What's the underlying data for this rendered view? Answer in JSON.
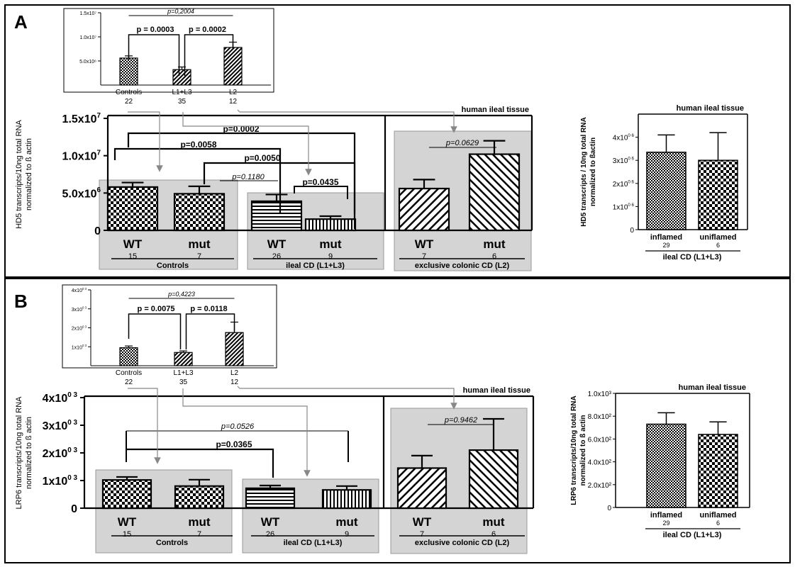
{
  "panel_a": {
    "letter": "A",
    "inset": {
      "yticks": [
        "1.5x10⁷",
        "1.0x10⁷",
        "5.0x10⁶"
      ],
      "categories": [
        "Controls",
        "L1+L3",
        "L2"
      ],
      "counts": [
        "22",
        "35",
        "12"
      ],
      "values": [
        5600000.0,
        3200000.0,
        7800000.0
      ],
      "errors": [
        450000.0,
        550000.0,
        1100000.0
      ],
      "p_overall": "p=0,2004",
      "p_left": "p = 0.0003",
      "p_right": "p = 0.0002"
    },
    "main": {
      "ylabel_lines": [
        "HD5 transcripts/10ng total RNA",
        "normalized to ß actin"
      ],
      "yticks": [
        "1.5x10",
        "1.0x10",
        "5.0x10",
        "0"
      ],
      "ytick_exps": [
        "7",
        "7",
        "6",
        ""
      ],
      "label": "human ileal tissue",
      "values": [
        5800000.0,
        4900000.0,
        3900000.0,
        1500000.0,
        5600000.0,
        10200000.0
      ],
      "errors": [
        600000.0,
        1000000.0,
        900000.0,
        400000.0,
        1200000.0,
        1800000.0
      ],
      "bar_labels": [
        "WT",
        "mut",
        "WT",
        "mut",
        "WT",
        "mut"
      ],
      "counts": [
        "15",
        "7",
        "26",
        "9",
        "7",
        "6"
      ],
      "groups": [
        "Controls",
        "ileal CD (L1+L3)",
        "exclusive colonic CD (L2)"
      ],
      "pvalues": [
        "p=0.0002",
        "p=0.0058",
        "p=0.0050",
        "p=0.1180",
        "p=0.0435",
        "p=0.0629"
      ]
    },
    "right": {
      "ylabel_lines": [
        "HD5 transcripts / 10ng total RNA",
        "normalized to ßactin"
      ],
      "yticks": [
        "4x10",
        "3x10",
        "2x10",
        "1x10",
        "0"
      ],
      "ytick_exps": [
        "0 6",
        "0 6",
        "0 6",
        "0 6",
        ""
      ],
      "label": "human ileal tissue",
      "categories": [
        "inflamed",
        "uniflamed"
      ],
      "counts": [
        "29",
        "6"
      ],
      "values": [
        3350000.0,
        3000000.0
      ],
      "errors": [
        750000.0,
        1200000.0
      ],
      "group": "ileal CD (L1+L3)"
    }
  },
  "panel_b": {
    "letter": "B",
    "inset": {
      "yticks": [
        "4x10",
        "3x10",
        "2x10",
        "1x10"
      ],
      "ytick_exps": [
        "0 3",
        "0 3",
        "0 3",
        "0 3"
      ],
      "categories": [
        "Controls",
        "L1+L3",
        "L2"
      ],
      "counts": [
        "22",
        "35",
        "12"
      ],
      "values": [
        950,
        700,
        1750
      ],
      "errors": [
        90,
        80,
        550
      ],
      "p_overall": "p=0,4223",
      "p_left": "p = 0.0075",
      "p_right": "p = 0.0118"
    },
    "main": {
      "ylabel_lines": [
        "LRP6 transcripts/10ng total RNA",
        "normalized to ß actin"
      ],
      "yticks": [
        "4x10",
        "3x10",
        "2x10",
        "1x10",
        "0"
      ],
      "ytick_exps": [
        "0 3",
        "0 3",
        "0 3",
        "0 3",
        ""
      ],
      "label": "human ileal tissue",
      "values": [
        1020,
        800,
        720,
        660,
        1450,
        2100
      ],
      "errors": [
        110,
        230,
        100,
        140,
        450,
        1130
      ],
      "bar_labels": [
        "WT",
        "mut",
        "WT",
        "mut",
        "WT",
        "mut"
      ],
      "counts": [
        "15",
        "7",
        "26",
        "9",
        "7",
        "6"
      ],
      "groups": [
        "Controls",
        "ileal CD (L1+L3)",
        "exclusive colonic CD (L2)"
      ],
      "pvalues": [
        "p=0.0526",
        "p=0.0365",
        "p=0.9462"
      ]
    },
    "right": {
      "ylabel_lines": [
        "LRP6 transcripts/10ng total RNA",
        "normalized to ß actin"
      ],
      "yticks": [
        "1.0x10³",
        "8.0x10²",
        "6.0x10²",
        "4.0x10²",
        "2.0x10²",
        "0"
      ],
      "label": "human ileal tissue",
      "categories": [
        "inflamed",
        "uniflamed"
      ],
      "counts": [
        "29",
        "6"
      ],
      "values": [
        730,
        640
      ],
      "errors": [
        100,
        110
      ],
      "group": "ileal CD (L1+L3)"
    }
  },
  "chart_data": [
    {
      "type": "bar",
      "panel": "A inset",
      "categories": [
        "Controls",
        "L1+L3",
        "L2"
      ],
      "values": [
        5600000.0,
        3200000.0,
        7800000.0
      ],
      "ylim": [
        0,
        15000000.0
      ],
      "annotations": [
        "p=0,2004",
        "p = 0.0003",
        "p = 0.0002"
      ]
    },
    {
      "type": "bar",
      "panel": "A main",
      "title": "human ileal tissue",
      "ylabel": "HD5 transcripts/10ng total RNA normalized to ß actin",
      "categories": [
        "WT",
        "mut",
        "WT",
        "mut",
        "WT",
        "mut"
      ],
      "groups": [
        "Controls",
        "ileal CD (L1+L3)",
        "exclusive colonic CD (L2)"
      ],
      "values": [
        5800000.0,
        4900000.0,
        3900000.0,
        1500000.0,
        5600000.0,
        10200000.0
      ],
      "ylim": [
        0,
        15000000.0
      ]
    },
    {
      "type": "bar",
      "panel": "A right",
      "title": "human ileal tissue",
      "ylabel": "HD5 transcripts / 10ng total RNA normalized to ßactin",
      "categories": [
        "inflamed",
        "uniflamed"
      ],
      "values": [
        3350000.0,
        3000000.0
      ],
      "ylim": [
        0,
        4000000.0
      ]
    },
    {
      "type": "bar",
      "panel": "B inset",
      "categories": [
        "Controls",
        "L1+L3",
        "L2"
      ],
      "values": [
        950,
        700,
        1750
      ],
      "ylim": [
        0,
        4000
      ],
      "annotations": [
        "p=0,4223",
        "p = 0.0075",
        "p = 0.0118"
      ]
    },
    {
      "type": "bar",
      "panel": "B main",
      "title": "human ileal tissue",
      "ylabel": "LRP6 transcripts/10ng total RNA normalized to ß actin",
      "categories": [
        "WT",
        "mut",
        "WT",
        "mut",
        "WT",
        "mut"
      ],
      "groups": [
        "Controls",
        "ileal CD (L1+L3)",
        "exclusive colonic CD (L2)"
      ],
      "values": [
        1020,
        800,
        720,
        660,
        1450,
        2100
      ],
      "ylim": [
        0,
        4000
      ]
    },
    {
      "type": "bar",
      "panel": "B right",
      "title": "human ileal tissue",
      "ylabel": "LRP6 transcripts/10ng total RNA normalized to ß actin",
      "categories": [
        "inflamed",
        "uniflamed"
      ],
      "values": [
        730,
        640
      ],
      "ylim": [
        0,
        1000
      ]
    }
  ]
}
